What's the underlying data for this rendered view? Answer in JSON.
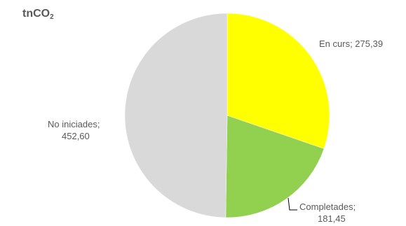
{
  "chart_data": {
    "type": "pie",
    "title_main": "tnCO",
    "title_sub": "2",
    "start_angle_deg": 0,
    "direction": "clockwise",
    "slices": [
      {
        "label": "En curs",
        "value": 275.39,
        "value_text": "275,39",
        "color": "#ffff00"
      },
      {
        "label": "Completades",
        "value": 181.45,
        "value_text": "181,45",
        "color": "#92d050"
      },
      {
        "label": "No iniciades",
        "value": 452.6,
        "value_text": "452,60",
        "color": "#d9d9d9"
      }
    ],
    "data_labels": [
      {
        "line1": "En curs; 275,39",
        "line2": ""
      },
      {
        "line1": "Completades;",
        "line2": "181,45"
      },
      {
        "line1": "No iniciades;",
        "line2": "452,60"
      }
    ]
  }
}
